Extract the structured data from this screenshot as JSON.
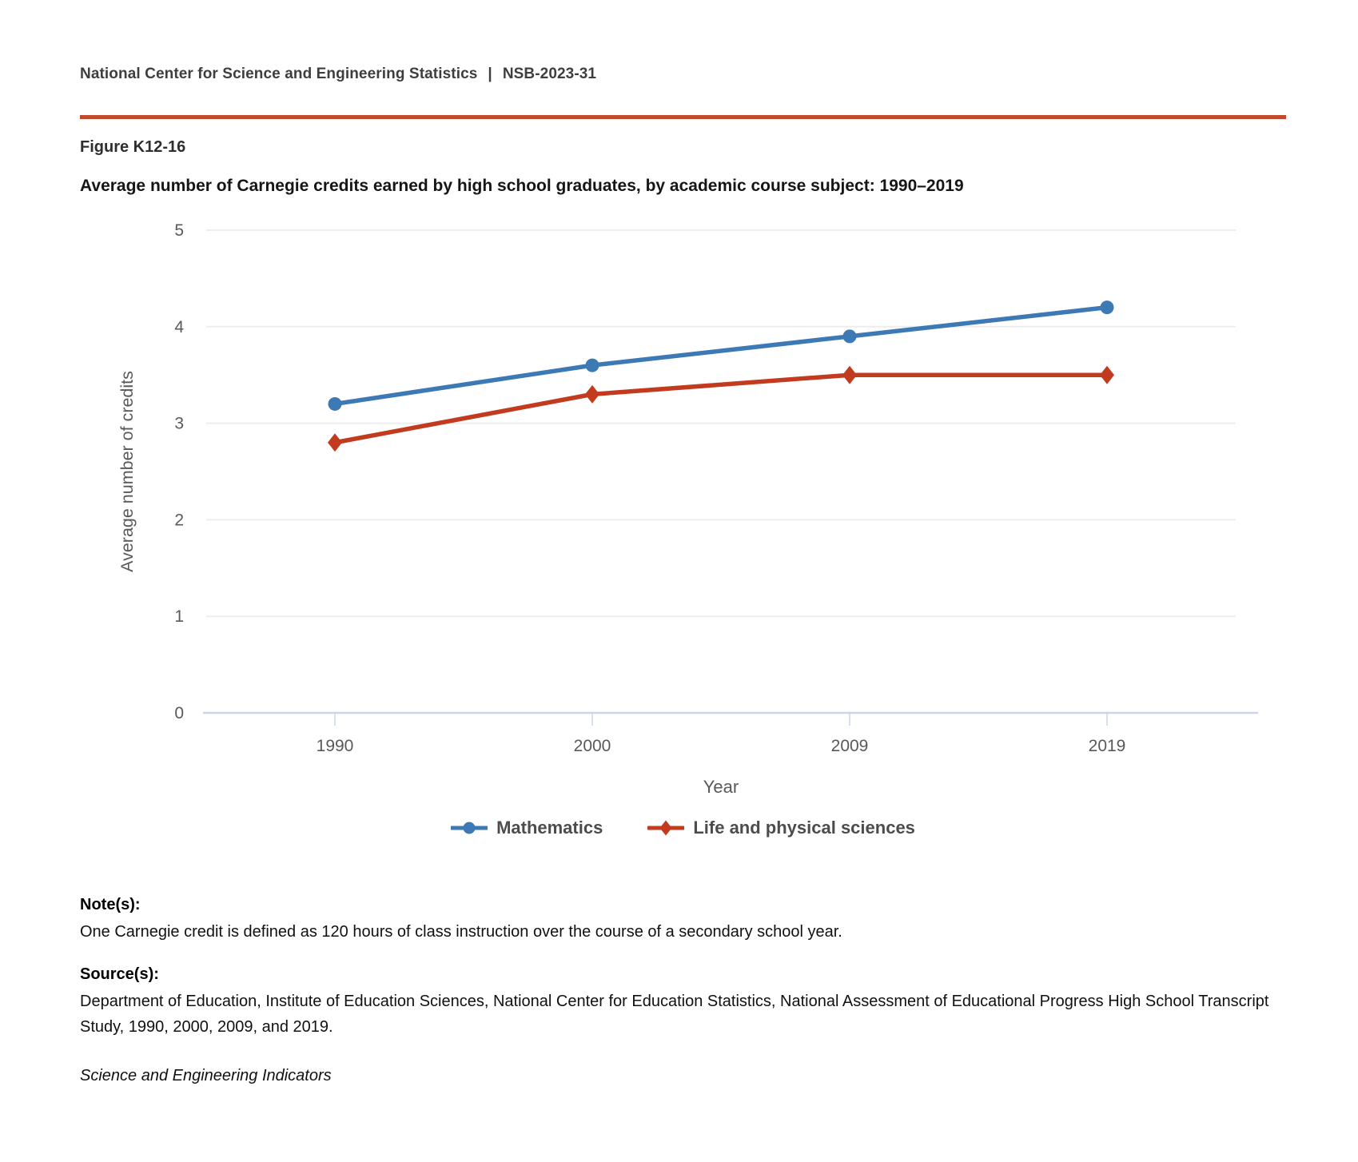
{
  "header": {
    "brand": "National Center for Science and Engineering Statistics",
    "separator": "|",
    "report_id": "NSB-2023-31"
  },
  "figure": {
    "label": "Figure K12-16",
    "title": "Average number of Carnegie credits earned by high school graduates, by academic course subject: 1990–2019"
  },
  "chart_data": {
    "type": "line",
    "categories": [
      "1990",
      "2000",
      "2009",
      "2019"
    ],
    "series": [
      {
        "name": "Mathematics",
        "values": [
          3.2,
          3.6,
          3.9,
          4.2
        ],
        "color": "#3c79b5",
        "marker": "circle"
      },
      {
        "name": "Life and physical sciences",
        "values": [
          2.8,
          3.3,
          3.5,
          3.5
        ],
        "color": "#c23b1e",
        "marker": "diamond"
      }
    ],
    "xlabel": "Year",
    "ylabel": "Average number of credits",
    "ylim": [
      0,
      5
    ],
    "yticks": [
      0,
      1,
      2,
      3,
      4,
      5
    ],
    "grid": true,
    "legend_position": "bottom"
  },
  "notes": {
    "label": "Note(s):",
    "text": "One Carnegie credit is defined as 120 hours of class instruction over the course of a secondary school year."
  },
  "sources": {
    "label": "Source(s):",
    "text": "Department of Education, Institute of Education Sciences, National Center for Education Statistics, National Assessment of Educational Progress High School Transcript Study, 1990, 2000, 2009, and 2019."
  },
  "footer_line": "Science and Engineering Indicators",
  "colors": {
    "accent_rule": "#c14a2e",
    "axis_line": "#c9d5e8",
    "gridline": "#ededed",
    "tick_label": "#595959",
    "axis_title": "#595959",
    "legend_text": "#4c4c4c"
  }
}
